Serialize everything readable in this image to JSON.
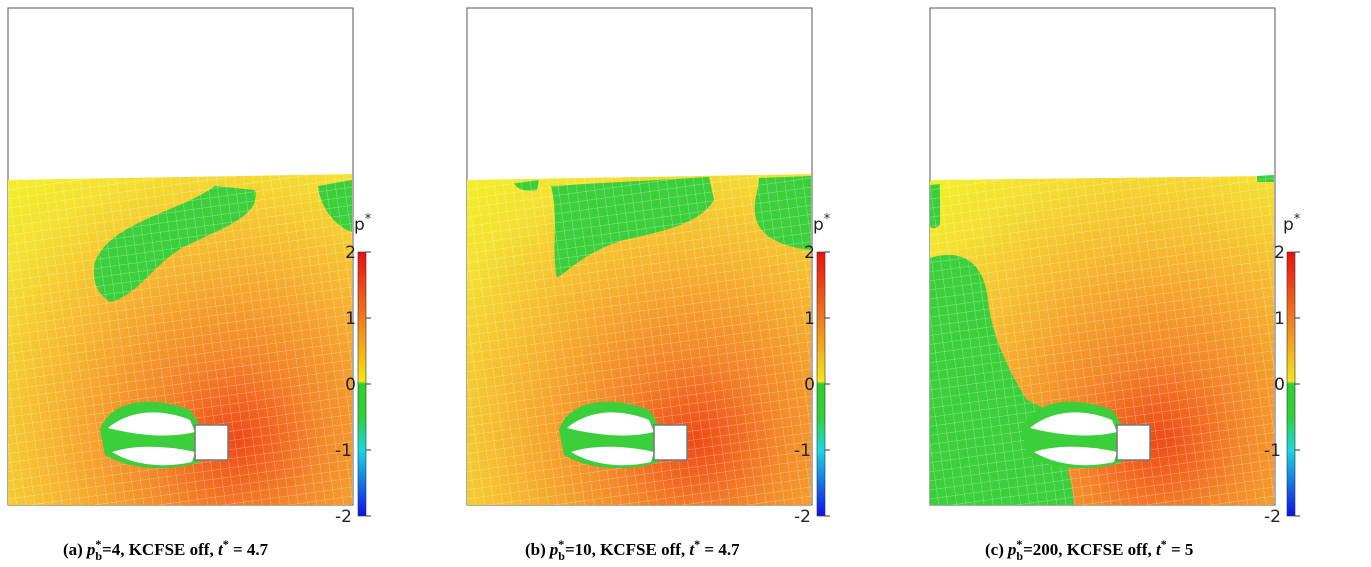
{
  "colorbar": {
    "label": "p",
    "label_sup": "*",
    "min": -2,
    "max": 2,
    "ticks": [
      2,
      1,
      0,
      -1,
      -2
    ]
  },
  "panels": [
    {
      "label": "(a)",
      "p_var": "p",
      "p_sup": "*",
      "p_sub": "b",
      "p_value": "=4",
      "text": ", KCFSE off, ",
      "t_var": "t",
      "t_sup": "*",
      "t_value": " = 4.7"
    },
    {
      "label": "(b)",
      "p_var": "p",
      "p_sup": "*",
      "p_sub": "b",
      "p_value": "=10",
      "text": ", KCFSE off, ",
      "t_var": "t",
      "t_sup": "*",
      "t_value": " = 4.7"
    },
    {
      "label": "(c)",
      "p_var": "p",
      "p_sup": "*",
      "p_sub": "b",
      "p_value": "=200",
      "text": ", KCFSE off, ",
      "t_var": "t",
      "t_sup": "*",
      "t_value": " = 5"
    }
  ]
}
